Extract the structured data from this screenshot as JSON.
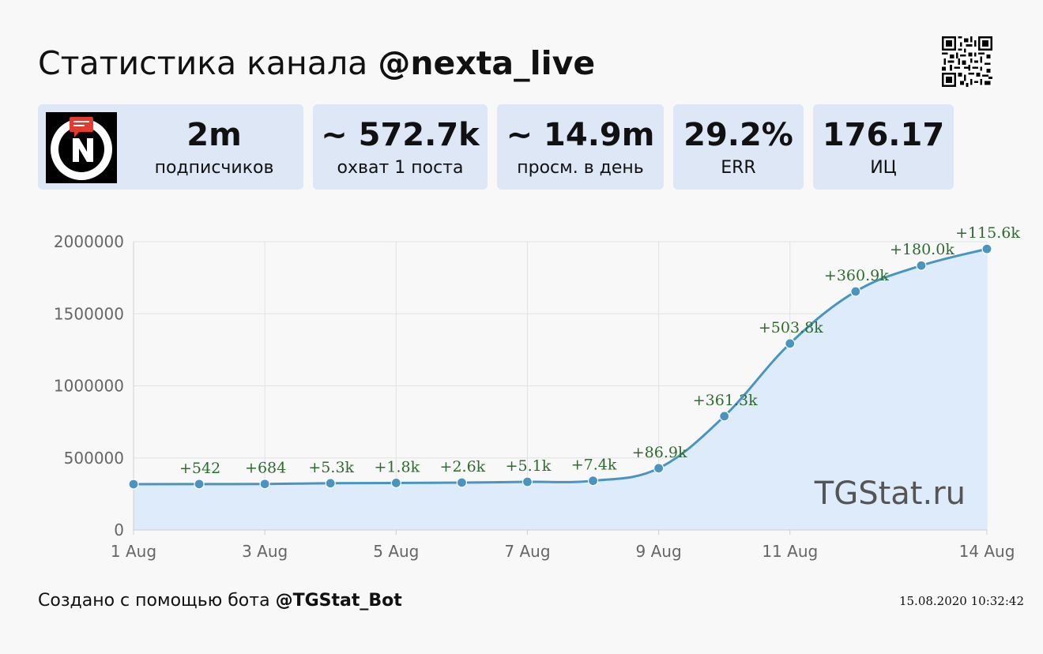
{
  "header": {
    "title_prefix": "Статистика канала",
    "channel_handle": "@nexta_live"
  },
  "stats": {
    "subscribers": {
      "value": "2m",
      "label": "подписчиков"
    },
    "reach": {
      "value": "~ 572.7k",
      "label": "охват 1 поста"
    },
    "daily_views": {
      "value": "~ 14.9m",
      "label": "просм. в день"
    },
    "err": {
      "value": "29.2%",
      "label": "ERR"
    },
    "citation_index": {
      "value": "176.17",
      "label": "ИЦ"
    }
  },
  "chart_data": {
    "type": "area",
    "x": [
      "2020-08-01",
      "2020-08-02",
      "2020-08-03",
      "2020-08-04",
      "2020-08-05",
      "2020-08-06",
      "2020-08-07",
      "2020-08-08",
      "2020-08-09",
      "2020-08-10",
      "2020-08-11",
      "2020-08-12",
      "2020-08-13",
      "2020-08-14"
    ],
    "values": [
      318000,
      318542,
      319226,
      324526,
      326326,
      328926,
      334026,
      341426,
      428326,
      789626,
      1293426,
      1654326,
      1834326,
      1949926
    ],
    "point_labels": [
      "",
      "+542",
      "+684",
      "+5.3k",
      "+1.8k",
      "+2.6k",
      "+5.1k",
      "+7.4k",
      "+86.9k",
      "+361.3k",
      "+503.8k",
      "+360.9k",
      "+180.0k",
      "+115.6k"
    ],
    "x_tick_labels": [
      {
        "index": 0,
        "label": "1 Aug"
      },
      {
        "index": 2,
        "label": "3 Aug"
      },
      {
        "index": 4,
        "label": "5 Aug"
      },
      {
        "index": 6,
        "label": "7 Aug"
      },
      {
        "index": 8,
        "label": "9 Aug"
      },
      {
        "index": 10,
        "label": "11 Aug"
      },
      {
        "index": 13,
        "label": "14 Aug"
      }
    ],
    "y_ticks": [
      0,
      500000,
      1000000,
      1500000,
      2000000
    ],
    "ylim": [
      0,
      2000000
    ],
    "grid": true,
    "watermark": "TGStat.ru",
    "colors": {
      "line": "#4a95bf",
      "fill": "#deebfb",
      "point_label": "#2e6b2e",
      "grid": "#e2e2e2",
      "tick_label": "#666666"
    }
  },
  "footer": {
    "created_text": "Создано с помощью бота",
    "bot_handle": "@TGStat_Bot",
    "timestamp": "15.08.2020 10:32:42"
  },
  "colors": {
    "card_bg": "#dde7f6",
    "page_bg": "#f8f8f8",
    "logo_red": "#e53a2e"
  },
  "icons": {
    "channel_logo": "nexta-logo",
    "qr": "qr-code-icon"
  }
}
